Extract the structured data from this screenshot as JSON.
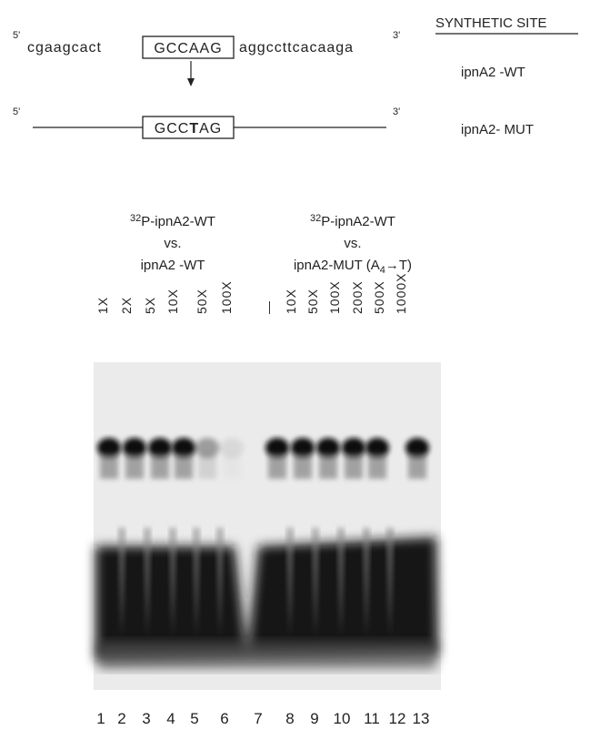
{
  "header": {
    "title": "SYNTHETIC SITE"
  },
  "sequences": [
    {
      "five": "5'",
      "left": "cgaagcact",
      "box": "GCCAAG",
      "right": "aggccttcacaaga",
      "three": "3'",
      "label": "ipnA2 -WT"
    },
    {
      "five": "5'",
      "box_parts": [
        "GCC",
        "T",
        "AG"
      ],
      "three": "3'",
      "label": "ipnA2- MUT"
    }
  ],
  "competitions": [
    {
      "probe_sup": "32",
      "probe": "P-ipnA2-WT",
      "vs": "vs.",
      "competitor": "ipnA2 -WT",
      "amounts": [
        "1X",
        "2X",
        "5X",
        "10X",
        "50X",
        "100X"
      ]
    },
    {
      "probe_sup": "32",
      "probe": "P-ipnA2-WT",
      "vs": "vs.",
      "competitor": "ipnA2-MUT (A",
      "competitor_sub": "4",
      "competitor_end": "→T)",
      "amounts": [
        "—",
        "10X",
        "50X",
        "100X",
        "200X",
        "500X",
        "1000X"
      ]
    }
  ],
  "lanes": [
    "1",
    "2",
    "3",
    "4",
    "5",
    "6",
    "7",
    "8",
    "9",
    "10",
    "11",
    "12",
    "13"
  ]
}
